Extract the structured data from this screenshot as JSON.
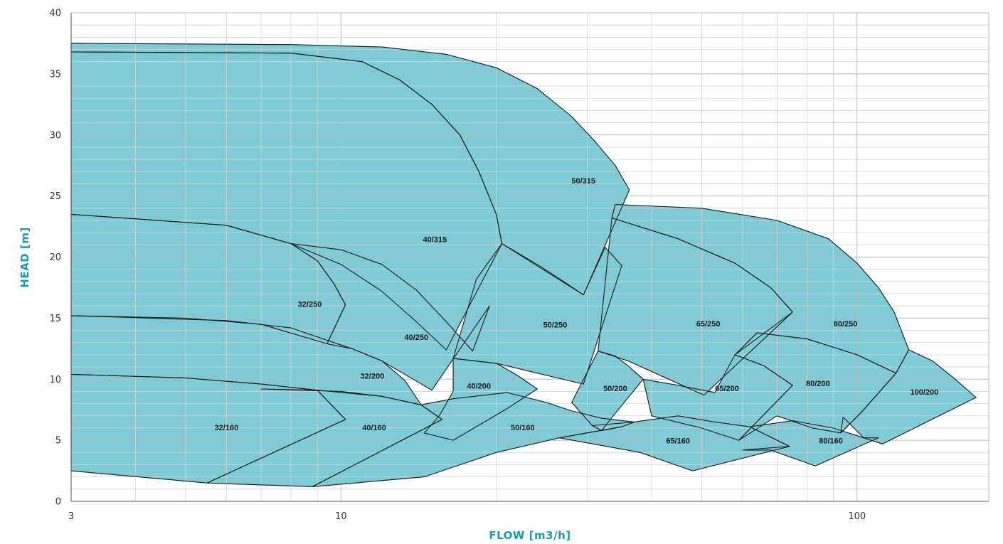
{
  "chart_data": {
    "type": "area",
    "xlabel": "FLOW [m3/h]",
    "ylabel": "HEAD [m]",
    "x_scale": "log",
    "xlim": [
      3,
      180
    ],
    "ylim": [
      0,
      40
    ],
    "x_ticks": [
      {
        "value": 3,
        "label": "3"
      },
      {
        "value": 10,
        "label": "10"
      },
      {
        "value": 100,
        "label": "100"
      }
    ],
    "y_ticks": [
      {
        "value": 0,
        "label": "0"
      },
      {
        "value": 5,
        "label": "5"
      },
      {
        "value": 10,
        "label": "10"
      },
      {
        "value": 15,
        "label": "15"
      },
      {
        "value": 20,
        "label": "20"
      },
      {
        "value": 25,
        "label": "25"
      },
      {
        "value": 30,
        "label": "30"
      },
      {
        "value": 35,
        "label": "35"
      },
      {
        "value": 40,
        "label": "40"
      }
    ],
    "grid": true,
    "colors": {
      "fill": "#7ecbd6",
      "outline": "#1c1c1c",
      "axis_title": "#1a9cb0"
    },
    "series": [
      {
        "name": "50/315",
        "label_at": [
          29.5,
          26.2
        ],
        "points": [
          [
            3,
            37.5
          ],
          [
            8,
            37.4
          ],
          [
            12,
            37.2
          ],
          [
            16,
            36.6
          ],
          [
            20,
            35.5
          ],
          [
            24,
            33.8
          ],
          [
            28,
            31.5
          ],
          [
            31,
            29.5
          ],
          [
            34,
            27.5
          ],
          [
            36.2,
            25.5
          ],
          [
            29.5,
            16.9
          ],
          [
            20.5,
            21.1
          ],
          [
            20,
            23.5
          ],
          [
            18.5,
            27
          ],
          [
            17,
            30
          ],
          [
            15,
            32.5
          ],
          [
            13,
            34.5
          ],
          [
            11,
            36
          ],
          [
            8,
            36.7
          ],
          [
            3,
            36.8
          ]
        ]
      },
      {
        "name": "40/315",
        "label_at": [
          15.2,
          21.4
        ],
        "points": [
          [
            3,
            36.8
          ],
          [
            8,
            36.7
          ],
          [
            11,
            36
          ],
          [
            13,
            34.5
          ],
          [
            15,
            32.5
          ],
          [
            17,
            30
          ],
          [
            18.5,
            27
          ],
          [
            20,
            23.5
          ],
          [
            20.5,
            21.1
          ],
          [
            16,
            12.4
          ],
          [
            14,
            14.7
          ],
          [
            12,
            17.2
          ],
          [
            10,
            19.4
          ],
          [
            8,
            21.1
          ],
          [
            6,
            22.6
          ],
          [
            3,
            23.5
          ]
        ]
      },
      {
        "name": "32/250",
        "label_at": [
          8.7,
          16.1
        ],
        "points": [
          [
            3,
            23.5
          ],
          [
            6,
            22.6
          ],
          [
            8,
            21.1
          ],
          [
            9,
            19.7
          ],
          [
            9.7,
            17.8
          ],
          [
            10.2,
            16.1
          ],
          [
            9.4,
            12.9
          ],
          [
            7,
            14.5
          ],
          [
            5,
            15
          ],
          [
            3,
            15.2
          ]
        ]
      },
      {
        "name": "40/250",
        "label_at": [
          14,
          13.4
        ],
        "points": [
          [
            8,
            21.1
          ],
          [
            10,
            20.6
          ],
          [
            12,
            19.4
          ],
          [
            14,
            17.3
          ],
          [
            16,
            14.7
          ],
          [
            18,
            12.3
          ],
          [
            19.4,
            16
          ],
          [
            15,
            9.1
          ],
          [
            12,
            11.5
          ],
          [
            10.5,
            12.5
          ],
          [
            9.4,
            12.9
          ],
          [
            10.2,
            16.1
          ],
          [
            9.7,
            17.8
          ],
          [
            9,
            19.7
          ]
        ]
      },
      {
        "name": "50/250",
        "label_at": [
          26,
          14.4
        ],
        "points": [
          [
            20.5,
            21.1
          ],
          [
            24,
            19.4
          ],
          [
            27,
            18
          ],
          [
            29.5,
            16.9
          ],
          [
            32.5,
            20.8
          ],
          [
            35,
            19.3
          ],
          [
            29.5,
            9.6
          ],
          [
            24,
            10.5
          ],
          [
            20,
            11.3
          ],
          [
            16.5,
            11.7
          ],
          [
            18.3,
            18.2
          ],
          [
            20.5,
            21.1
          ]
        ]
      },
      {
        "name": "32/200",
        "label_at": [
          11.5,
          10.2
        ],
        "points": [
          [
            3,
            15.2
          ],
          [
            6,
            14.8
          ],
          [
            8,
            14.2
          ],
          [
            10.5,
            12.5
          ],
          [
            12,
            11.5
          ],
          [
            13.3,
            9.9
          ],
          [
            14.3,
            7.9
          ],
          [
            12,
            8.6
          ],
          [
            9,
            9.1
          ],
          [
            7,
            9.6
          ],
          [
            5,
            10.1
          ],
          [
            3,
            10.4
          ]
        ]
      },
      {
        "name": "40/200",
        "label_at": [
          18.5,
          9.4
        ],
        "points": [
          [
            16.5,
            11.7
          ],
          [
            20,
            11.3
          ],
          [
            22,
            10.3
          ],
          [
            24,
            9.2
          ],
          [
            21,
            7.6
          ],
          [
            16.5,
            5
          ],
          [
            14.5,
            5.6
          ],
          [
            15.5,
            7
          ],
          [
            16.5,
            9
          ],
          [
            16.5,
            11.7
          ]
        ]
      },
      {
        "name": "50/200",
        "label_at": [
          34,
          9.2
        ],
        "points": [
          [
            31.5,
            12.3
          ],
          [
            34,
            11.9
          ],
          [
            36,
            11.1
          ],
          [
            38.5,
            10
          ],
          [
            34,
            7.2
          ],
          [
            32,
            5.8
          ],
          [
            30.7,
            6.2
          ],
          [
            28,
            8.1
          ],
          [
            31.5,
            12.3
          ]
        ]
      },
      {
        "name": "65/250",
        "label_at": [
          51.5,
          14.5
        ],
        "points": [
          [
            33.5,
            23.2
          ],
          [
            45,
            21.5
          ],
          [
            58,
            19.5
          ],
          [
            68,
            17.5
          ],
          [
            75,
            15.5
          ],
          [
            50.5,
            8.7
          ],
          [
            36,
            11.5
          ],
          [
            31.5,
            12.3
          ],
          [
            33.5,
            23.2
          ]
        ]
      },
      {
        "name": "80/250",
        "label_at": [
          95,
          14.5
        ],
        "points": [
          [
            34,
            24.3
          ],
          [
            50,
            24
          ],
          [
            70,
            23
          ],
          [
            88,
            21.5
          ],
          [
            100,
            19.5
          ],
          [
            110,
            17.5
          ],
          [
            118,
            15.5
          ],
          [
            126,
            12.4
          ],
          [
            119,
            10.5
          ],
          [
            100,
            12
          ],
          [
            80,
            13.3
          ],
          [
            64,
            13.8
          ],
          [
            58,
            12
          ],
          [
            75,
            15.5
          ],
          [
            68,
            17.5
          ],
          [
            58,
            19.5
          ],
          [
            45,
            21.5
          ],
          [
            33.5,
            23.2
          ]
        ]
      },
      {
        "name": "65/200",
        "label_at": [
          56,
          9.2
        ],
        "points": [
          [
            38.5,
            10
          ],
          [
            45,
            9.5
          ],
          [
            53,
            8.9
          ],
          [
            58,
            12
          ],
          [
            66,
            11.1
          ],
          [
            75,
            9.5
          ],
          [
            59,
            5
          ],
          [
            50,
            6
          ],
          [
            40,
            7
          ],
          [
            38.5,
            10
          ]
        ]
      },
      {
        "name": "80/200",
        "label_at": [
          84,
          9.6
        ],
        "points": [
          [
            64,
            13.8
          ],
          [
            80,
            13.3
          ],
          [
            100,
            12
          ],
          [
            119,
            10.5
          ],
          [
            102,
            7.3
          ],
          [
            93,
            5.6
          ],
          [
            82,
            6
          ],
          [
            70,
            7
          ],
          [
            59,
            5
          ],
          [
            75,
            9.5
          ],
          [
            66,
            11.1
          ],
          [
            58,
            12
          ]
        ]
      },
      {
        "name": "100/200",
        "label_at": [
          135,
          8.9
        ],
        "points": [
          [
            126,
            12.4
          ],
          [
            140,
            11.5
          ],
          [
            155,
            10
          ],
          [
            170,
            8.5
          ],
          [
            112,
            4.7
          ],
          [
            103,
            5.2
          ],
          [
            94,
            6.9
          ],
          [
            93,
            5.6
          ],
          [
            102,
            7.3
          ],
          [
            119,
            10.5
          ]
        ]
      },
      {
        "name": "32/160",
        "label_at": [
          6,
          6
        ],
        "points": [
          [
            3,
            10.4
          ],
          [
            5,
            10.1
          ],
          [
            7,
            9.6
          ],
          [
            9,
            9.1
          ],
          [
            10.2,
            6.7
          ],
          [
            5.5,
            1.5
          ],
          [
            3,
            2.5
          ]
        ]
      },
      {
        "name": "40/160",
        "label_at": [
          11.6,
          6
        ],
        "points": [
          [
            7,
            9.2
          ],
          [
            10,
            9
          ],
          [
            12,
            8.6
          ],
          [
            14.3,
            7.9
          ],
          [
            15.7,
            6.7
          ],
          [
            8.8,
            1.2
          ],
          [
            5.5,
            1.5
          ],
          [
            10.2,
            6.7
          ],
          [
            9,
            9.1
          ]
        ]
      },
      {
        "name": "50/160",
        "label_at": [
          22.5,
          6
        ],
        "points": [
          [
            14.3,
            7.9
          ],
          [
            16.5,
            8.4
          ],
          [
            21,
            8.9
          ],
          [
            25,
            8.1
          ],
          [
            28,
            7.4
          ],
          [
            32,
            6.8
          ],
          [
            37,
            6.5
          ],
          [
            35,
            6.1
          ],
          [
            26.5,
            5.2
          ],
          [
            20,
            4
          ],
          [
            14.5,
            2
          ],
          [
            8.8,
            1.2
          ],
          [
            15.7,
            6.7
          ]
        ]
      },
      {
        "name": "65/160",
        "label_at": [
          45,
          4.9
        ],
        "points": [
          [
            30.7,
            6.2
          ],
          [
            37,
            6.5
          ],
          [
            45,
            7
          ],
          [
            53,
            6.5
          ],
          [
            62,
            6.1
          ],
          [
            74,
            4.5
          ],
          [
            48,
            2.5
          ],
          [
            38,
            4
          ],
          [
            26.5,
            5.2
          ],
          [
            35,
            6.1
          ],
          [
            32,
            5.8
          ]
        ]
      },
      {
        "name": "80/160",
        "label_at": [
          89,
          4.9
        ],
        "points": [
          [
            62,
            6.1
          ],
          [
            75,
            6.6
          ],
          [
            90,
            6
          ],
          [
            103,
            5.2
          ],
          [
            110,
            5.2
          ],
          [
            83,
            2.9
          ],
          [
            68,
            4.2
          ],
          [
            60,
            4.2
          ],
          [
            74,
            4.5
          ]
        ]
      }
    ]
  }
}
